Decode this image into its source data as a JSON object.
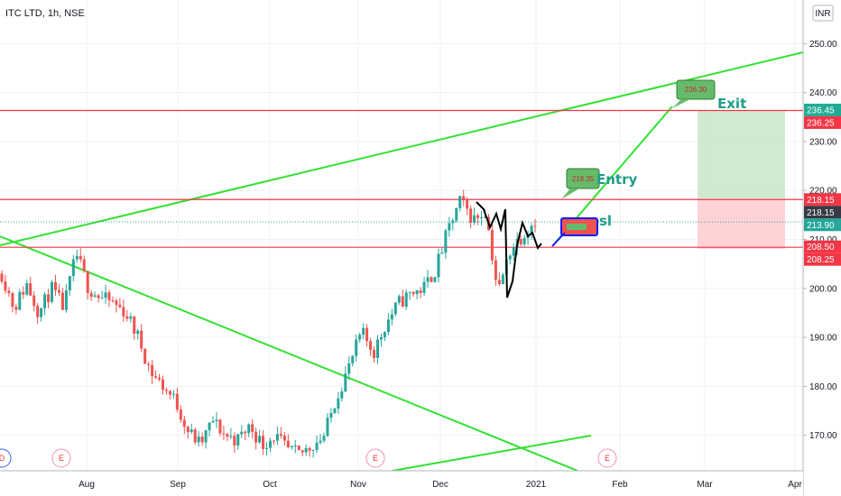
{
  "header": {
    "title": "ITC LTD, 1h, NSE",
    "currency_button": "INR"
  },
  "chart_data": {
    "type": "candlestick",
    "title": "ITC LTD, 1h, NSE",
    "currency": "INR",
    "ylim": [
      164,
      257
    ],
    "y_ticks": [
      170,
      180,
      190,
      200,
      210,
      220,
      230,
      240,
      250
    ],
    "y_tick_labels": [
      "170.00",
      "180.00",
      "190.00",
      "200.00",
      "210.00",
      "220.00",
      "230.00",
      "240.00",
      "250.00"
    ],
    "x_ticks": [
      "Aug",
      "Sep",
      "Oct",
      "Nov",
      "Dec",
      "2021",
      "Feb",
      "Mar",
      "Apr"
    ],
    "last_price": 213.9,
    "price_path": [
      [
        "Jul",
        203
      ],
      [
        "Jul",
        196
      ],
      [
        "Jul",
        201
      ],
      [
        "Jul",
        195
      ],
      [
        "Jul",
        200
      ],
      [
        "Aug",
        196
      ],
      [
        "Aug",
        207
      ],
      [
        "Aug",
        200
      ],
      [
        "Aug",
        198
      ],
      [
        "Aug",
        197
      ],
      [
        "Sep",
        195
      ],
      [
        "Sep",
        190
      ],
      [
        "Sep",
        183
      ],
      [
        "Sep",
        180
      ],
      [
        "Sep",
        177
      ],
      [
        "Sep",
        171
      ],
      [
        "Sep",
        168
      ],
      [
        "Oct",
        173
      ],
      [
        "Oct",
        170
      ],
      [
        "Oct",
        169
      ],
      [
        "Oct",
        172
      ],
      [
        "Oct",
        168
      ],
      [
        "Oct",
        170
      ],
      [
        "Oct",
        167
      ],
      [
        "Oct",
        166
      ],
      [
        "Nov",
        168
      ],
      [
        "Nov",
        170
      ],
      [
        "Nov",
        178
      ],
      [
        "Nov",
        184
      ],
      [
        "Nov",
        191
      ],
      [
        "Nov",
        187
      ],
      [
        "Nov",
        193
      ],
      [
        "Nov",
        197
      ],
      [
        "Nov",
        199
      ],
      [
        "Dec",
        200
      ],
      [
        "Dec",
        204
      ],
      [
        "Dec",
        212
      ],
      [
        "Dec",
        218
      ],
      [
        "Dec",
        214
      ],
      [
        "Dec",
        216
      ],
      [
        "Dec",
        199
      ],
      [
        "Dec",
        208
      ],
      [
        "Dec",
        211
      ],
      [
        "2021",
        214
      ]
    ],
    "price_labels": [
      {
        "text": "236.45",
        "value": 236.45,
        "color": "#22ab94"
      },
      {
        "text": "236.25",
        "value": 236.25,
        "color": "#f23645"
      },
      {
        "text": "218.15",
        "value": 218.15,
        "color": "#f23645"
      },
      {
        "text": "218.15",
        "value": 218.15,
        "color": "#363a45"
      },
      {
        "text": "213.90",
        "value": 213.9,
        "color": "#26a69a"
      },
      {
        "text": "208.50",
        "value": 208.5,
        "color": "#f23645"
      },
      {
        "text": "208.25",
        "value": 208.25,
        "color": "#f23645"
      }
    ],
    "horizontal_lines": [
      {
        "value": 236.35,
        "color": "#f23645"
      },
      {
        "value": 218.15,
        "color": "#f23645"
      },
      {
        "value": 208.4,
        "color": "#f23645"
      }
    ],
    "annotations": [
      {
        "text": "Exit",
        "color": "#1e9e8a"
      },
      {
        "text": "Entry",
        "color": "#1e9e8a"
      },
      {
        "text": "sl",
        "color": "#1e9e8a"
      }
    ],
    "callouts": [
      {
        "text": "236.30"
      },
      {
        "text": "218.35"
      },
      {
        "text": ""
      }
    ],
    "position_zone": {
      "entry": 218.15,
      "target": 236.45,
      "stop": 208.5
    },
    "event_markers": [
      "D",
      "E",
      "E",
      "E"
    ]
  }
}
